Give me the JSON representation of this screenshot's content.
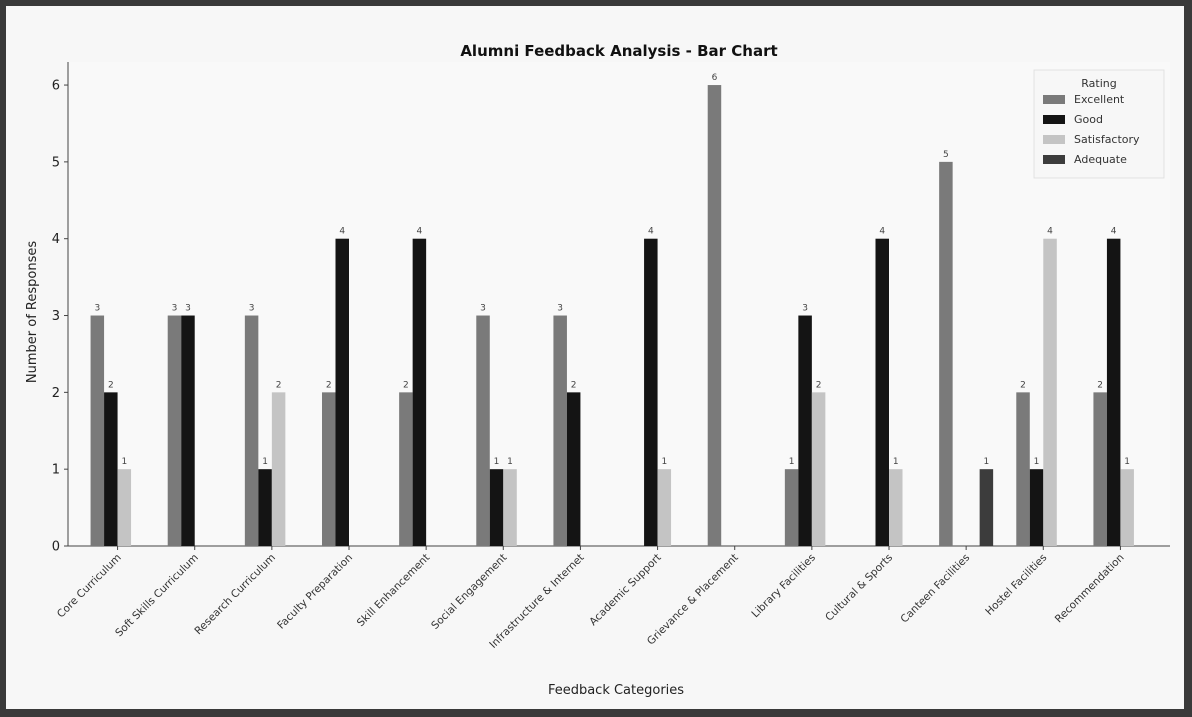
{
  "chart_data": {
    "type": "bar",
    "title": "Alumni Feedback Analysis - Bar Chart",
    "xlabel": "Feedback Categories",
    "ylabel": "Number of Responses",
    "ylim": [
      0,
      6.3
    ],
    "yticks": [
      0,
      1,
      2,
      3,
      4,
      5,
      6
    ],
    "grid": false,
    "legend": {
      "title": "Rating",
      "placement": "top-right"
    },
    "categories": [
      "Core Curriculum",
      "Soft Skills Curriculum",
      "Research Curriculum",
      "Faculty Preparation",
      "Skill Enhancement",
      "Social Engagement",
      "Infrastructure & Internet",
      "Academic Support",
      "Grievance & Placement",
      "Library Facilities",
      "Cultural & Sports",
      "Canteen Facilities",
      "Hostel Facilities",
      "Recommendation"
    ],
    "series": [
      {
        "name": "Excellent",
        "color": "#7a7a7a",
        "values": [
          3,
          3,
          3,
          2,
          2,
          3,
          3,
          0,
          6,
          1,
          0,
          5,
          2,
          2
        ]
      },
      {
        "name": "Good",
        "color": "#141414",
        "values": [
          2,
          3,
          1,
          4,
          4,
          1,
          2,
          4,
          0,
          3,
          4,
          0,
          1,
          4
        ]
      },
      {
        "name": "Satisfactory",
        "color": "#c4c4c4",
        "values": [
          1,
          0,
          2,
          0,
          0,
          1,
          0,
          1,
          0,
          2,
          1,
          0,
          4,
          1
        ]
      },
      {
        "name": "Adequate",
        "color": "#3c3c3c",
        "values": [
          0,
          0,
          0,
          0,
          0,
          0,
          0,
          0,
          0,
          0,
          0,
          1,
          0,
          0
        ]
      }
    ]
  }
}
